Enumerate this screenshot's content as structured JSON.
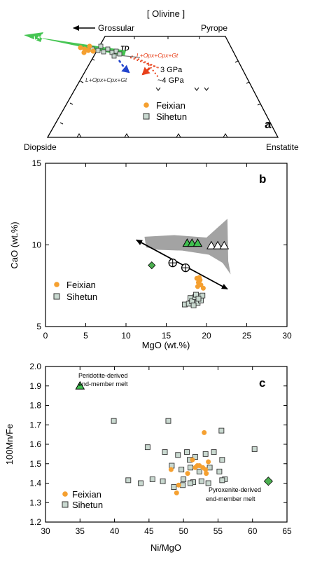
{
  "colors": {
    "feixian": "#f5a030",
    "sihetun_fill": "#c9d9d0",
    "sihetun_stroke": "#333333",
    "green_tri": "#3fbf4f",
    "green_diamond": "#4caf50",
    "gray_field": "#a3a3a3",
    "green_arrow": "#3cc24a",
    "blue_arrow": "#2244cc",
    "red_arrow": "#e8401a"
  },
  "chart_data": [
    {
      "type": "ternary",
      "panel_label": "a",
      "title": "[ Olivine ]",
      "vertices": {
        "top_left": "Grossular",
        "top_right": "Pyrope",
        "bottom_left": "Diopside",
        "bottom_right": "Enstatite"
      },
      "annotations": {
        "td": "TD",
        "green_field": "L+Ol+Cpx+Gt",
        "red_field": "L+Opx+Cpx+Gt",
        "blue_field": "L+Opx+Cpx+Gt",
        "p3": "3 GPa",
        "p4": "~4 GPa"
      },
      "legend": [
        {
          "name": "Feixian",
          "marker": "circle"
        },
        {
          "name": "Sihetun",
          "marker": "square"
        }
      ]
    },
    {
      "type": "scatter",
      "panel_label": "b",
      "xlabel": "MgO (wt.%)",
      "ylabel": "CaO (wt.%)",
      "xlim": [
        0,
        30
      ],
      "ylim": [
        5,
        15
      ],
      "xticks": [
        0,
        5,
        10,
        15,
        20,
        25,
        30
      ],
      "yticks": [
        5,
        10,
        15
      ],
      "series": [
        {
          "name": "Feixian",
          "marker": "circle",
          "points": [
            [
              18.8,
              7.95
            ],
            [
              19.0,
              7.7
            ],
            [
              19.2,
              7.85
            ],
            [
              19.3,
              7.55
            ],
            [
              19.6,
              7.35
            ],
            [
              18.9,
              7.45
            ],
            [
              19.1,
              8.0
            ]
          ]
        },
        {
          "name": "Sihetun",
          "marker": "square",
          "points": [
            [
              17.3,
              6.35
            ],
            [
              17.8,
              6.4
            ],
            [
              18.0,
              6.75
            ],
            [
              18.2,
              6.55
            ],
            [
              18.6,
              6.8
            ],
            [
              18.9,
              6.45
            ],
            [
              19.1,
              6.85
            ],
            [
              19.3,
              6.6
            ],
            [
              19.5,
              6.9
            ],
            [
              18.4,
              6.3
            ],
            [
              18.7,
              6.95
            ],
            [
              19.0,
              6.7
            ]
          ]
        }
      ],
      "green_triangles": [
        [
          17.6,
          10.1
        ],
        [
          18.2,
          10.1
        ],
        [
          18.9,
          10.1
        ]
      ],
      "open_triangles": [
        [
          20.6,
          9.95
        ],
        [
          21.4,
          9.95
        ],
        [
          22.2,
          9.95
        ]
      ],
      "green_diamond": [
        13.2,
        8.75
      ],
      "crossed_circles": [
        [
          15.8,
          8.9
        ],
        [
          17.4,
          8.6
        ]
      ],
      "arrow": {
        "from": [
          22.6,
          7.3
        ],
        "to": [
          11.3,
          10.3
        ]
      },
      "gray_field": [
        [
          12.3,
          10.5
        ],
        [
          16.0,
          10.6
        ],
        [
          20.0,
          10.45
        ],
        [
          22.6,
          11.6
        ],
        [
          22.7,
          9.0
        ],
        [
          23.0,
          8.2
        ],
        [
          22.0,
          8.9
        ],
        [
          20.3,
          9.4
        ],
        [
          17.0,
          9.65
        ],
        [
          14.0,
          9.7
        ],
        [
          12.5,
          9.85
        ]
      ],
      "legend": [
        {
          "name": "Feixian",
          "marker": "circle"
        },
        {
          "name": "Sihetun",
          "marker": "square"
        }
      ]
    },
    {
      "type": "scatter",
      "panel_label": "c",
      "xlabel": "Ni/MgO",
      "ylabel": "100Mn/Fe",
      "xlim": [
        30,
        65
      ],
      "ylim": [
        1.2,
        2.0
      ],
      "xticks": [
        30,
        35,
        40,
        45,
        50,
        55,
        60,
        65
      ],
      "yticks": [
        1.2,
        1.3,
        1.4,
        1.5,
        1.6,
        1.7,
        1.8,
        1.9,
        2.0
      ],
      "series": [
        {
          "name": "Feixian",
          "marker": "circle",
          "points": [
            [
              53.0,
              1.66
            ],
            [
              48.2,
              1.47
            ],
            [
              51.3,
              1.52
            ],
            [
              52.3,
              1.49
            ],
            [
              52.8,
              1.48
            ],
            [
              53.2,
              1.47
            ],
            [
              53.6,
              1.51
            ],
            [
              51.7,
              1.48
            ],
            [
              53.3,
              1.45
            ],
            [
              50.6,
              1.45
            ],
            [
              49.3,
              1.39
            ],
            [
              49.0,
              1.35
            ],
            [
              52.0,
              1.49
            ]
          ]
        },
        {
          "name": "Sihetun",
          "marker": "square",
          "points": [
            [
              39.9,
              1.72
            ],
            [
              47.8,
              1.72
            ],
            [
              55.5,
              1.67
            ],
            [
              60.3,
              1.575
            ],
            [
              44.8,
              1.585
            ],
            [
              47.3,
              1.56
            ],
            [
              49.2,
              1.545
            ],
            [
              50.5,
              1.56
            ],
            [
              51.7,
              1.535
            ],
            [
              53.2,
              1.55
            ],
            [
              54.4,
              1.56
            ],
            [
              50.9,
              1.52
            ],
            [
              55.6,
              1.52
            ],
            [
              48.3,
              1.49
            ],
            [
              49.7,
              1.47
            ],
            [
              51.0,
              1.48
            ],
            [
              53.8,
              1.48
            ],
            [
              52.3,
              1.46
            ],
            [
              55.2,
              1.46
            ],
            [
              45.5,
              1.42
            ],
            [
              47.0,
              1.41
            ],
            [
              50.0,
              1.42
            ],
            [
              51.4,
              1.405
            ],
            [
              52.6,
              1.41
            ],
            [
              53.6,
              1.4
            ],
            [
              56.0,
              1.42
            ],
            [
              42.0,
              1.415
            ],
            [
              43.8,
              1.4
            ],
            [
              49.9,
              1.39
            ],
            [
              48.6,
              1.38
            ],
            [
              55.6,
              1.415
            ],
            [
              51.0,
              1.4
            ]
          ]
        }
      ],
      "green_triangle": {
        "point": [
          35.0,
          1.9
        ],
        "label_line1": "Peridotite-derived",
        "label_line2": "end-member melt"
      },
      "green_diamond": {
        "point": [
          62.3,
          1.41
        ],
        "label_line1": "Pyroxenite-derived",
        "label_line2": "end-member melt"
      },
      "legend": [
        {
          "name": "Feixian",
          "marker": "circle"
        },
        {
          "name": "Sihetun",
          "marker": "square"
        }
      ]
    }
  ]
}
